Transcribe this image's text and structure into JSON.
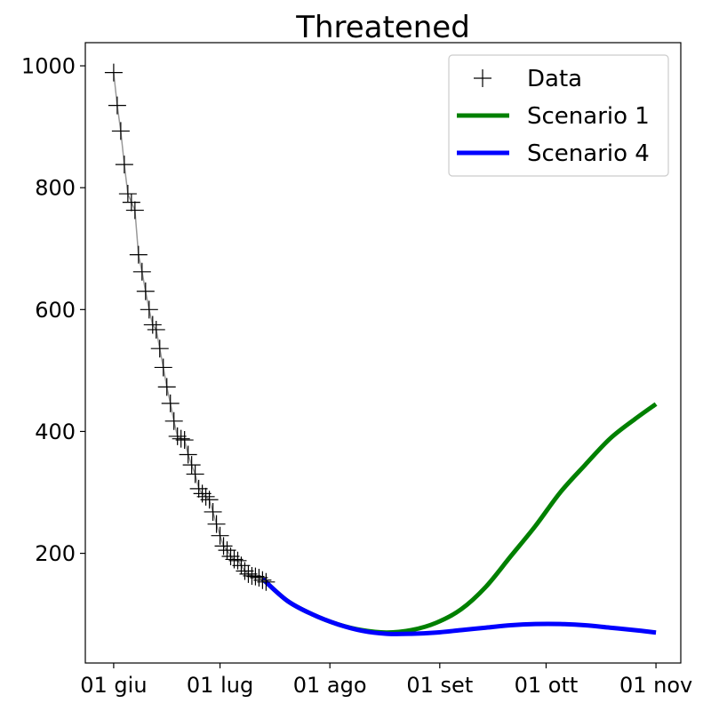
{
  "chart_data": {
    "type": "line",
    "title": "Threatened",
    "xlabel": "",
    "ylabel": "",
    "x_axis": {
      "type": "date",
      "range": [
        "2020-05-24",
        "2020-11-08"
      ],
      "ticks": [
        {
          "date": "2020-06-01",
          "label": "01 giu"
        },
        {
          "date": "2020-07-01",
          "label": "01 lug"
        },
        {
          "date": "2020-08-01",
          "label": "01 ago"
        },
        {
          "date": "2020-09-01",
          "label": "01 set"
        },
        {
          "date": "2020-10-01",
          "label": "01 ott"
        },
        {
          "date": "2020-11-01",
          "label": "01 nov"
        }
      ]
    },
    "y_axis": {
      "range": [
        20,
        1038
      ],
      "ticks": [
        200,
        400,
        600,
        800,
        1000
      ]
    },
    "grid": false,
    "legend": {
      "placement": "top-right",
      "entries": [
        {
          "label": "Data",
          "marker": "plus",
          "color": "#000000"
        },
        {
          "label": "Scenario 1",
          "marker": "line",
          "color": "#008000"
        },
        {
          "label": "Scenario 4",
          "marker": "line",
          "color": "#0000ff"
        }
      ]
    },
    "series": [
      {
        "name": "Data",
        "kind": "markers",
        "marker": "plus",
        "color": "#000000",
        "connector_color": "#999999",
        "x": [
          "2020-06-01",
          "2020-06-02",
          "2020-06-03",
          "2020-06-04",
          "2020-06-05",
          "2020-06-06",
          "2020-06-07",
          "2020-06-08",
          "2020-06-09",
          "2020-06-10",
          "2020-06-11",
          "2020-06-12",
          "2020-06-13",
          "2020-06-14",
          "2020-06-15",
          "2020-06-16",
          "2020-06-17",
          "2020-06-18",
          "2020-06-19",
          "2020-06-20",
          "2020-06-21",
          "2020-06-22",
          "2020-06-23",
          "2020-06-24",
          "2020-06-25",
          "2020-06-26",
          "2020-06-27",
          "2020-06-28",
          "2020-06-29",
          "2020-06-30",
          "2020-07-01",
          "2020-07-02",
          "2020-07-03",
          "2020-07-04",
          "2020-07-05",
          "2020-07-06",
          "2020-07-07",
          "2020-07-08",
          "2020-07-09",
          "2020-07-10",
          "2020-07-11",
          "2020-07-12",
          "2020-07-13",
          "2020-07-14"
        ],
        "y": [
          989,
          935,
          893,
          838,
          790,
          776,
          763,
          690,
          662,
          630,
          600,
          575,
          567,
          536,
          505,
          473,
          446,
          417,
          392,
          388,
          386,
          362,
          345,
          330,
          306,
          298,
          293,
          288,
          268,
          248,
          229,
          212,
          205,
          195,
          190,
          188,
          180,
          171,
          166,
          163,
          162,
          160,
          156,
          153
        ]
      },
      {
        "name": "Scenario 1",
        "kind": "line",
        "color": "#008000",
        "x": [
          "2020-07-13",
          "2020-07-20",
          "2020-07-27",
          "2020-08-03",
          "2020-08-10",
          "2020-08-17",
          "2020-08-24",
          "2020-08-31",
          "2020-09-07",
          "2020-09-14",
          "2020-09-21",
          "2020-09-28",
          "2020-10-05",
          "2020-10-12",
          "2020-10-19",
          "2020-10-26",
          "2020-11-01"
        ],
        "y": [
          158,
          122,
          100,
          84,
          74,
          70,
          74,
          86,
          108,
          145,
          195,
          245,
          300,
          345,
          388,
          420,
          445
        ]
      },
      {
        "name": "Scenario 4",
        "kind": "line",
        "color": "#0000ff",
        "x": [
          "2020-07-13",
          "2020-07-20",
          "2020-07-27",
          "2020-08-03",
          "2020-08-10",
          "2020-08-17",
          "2020-08-24",
          "2020-08-31",
          "2020-09-07",
          "2020-09-14",
          "2020-09-21",
          "2020-09-28",
          "2020-10-05",
          "2020-10-12",
          "2020-10-19",
          "2020-10-26",
          "2020-11-01"
        ],
        "y": [
          158,
          122,
          100,
          84,
          73,
          68,
          68,
          70,
          74,
          78,
          82,
          84,
          84,
          82,
          78,
          74,
          70
        ]
      }
    ]
  }
}
